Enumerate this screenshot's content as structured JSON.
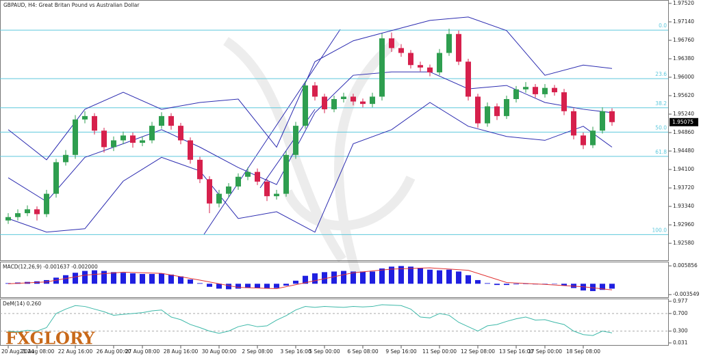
{
  "logo": "FXGLORY",
  "chart_data": [
    {
      "type": "candlestick",
      "title": "GBPAUD, H4:  Great Britan Pound vs Australian Dollar",
      "categories": [
        "20 Aug 2024",
        null,
        null,
        "21 Aug 08:00",
        null,
        null,
        null,
        "22 Aug 16:00",
        null,
        null,
        null,
        "26 Aug 00:00",
        null,
        null,
        "27 Aug 08:00",
        null,
        null,
        null,
        "28 Aug 16:00",
        null,
        null,
        null,
        "30 Aug 00:00",
        null,
        null,
        null,
        "2 Sep 08:00",
        null,
        null,
        null,
        "3 Sep 16:00",
        null,
        null,
        "5 Sep 00:00",
        null,
        null,
        null,
        "6 Sep 08:00",
        null,
        null,
        null,
        "9 Sep 16:00",
        null,
        null,
        null,
        "11 Sep 00:00",
        null,
        null,
        null,
        "12 Sep 08:00",
        null,
        null,
        null,
        "13 Sep 16:00",
        null,
        null,
        "17 Sep 00:00",
        null,
        null,
        null,
        "18 Sep 08:00",
        null,
        null,
        null
      ],
      "open": [
        1.9305,
        1.9312,
        1.932,
        1.9328,
        1.9318,
        1.936,
        1.9425,
        1.944,
        1.9513,
        1.952,
        1.949,
        1.9456,
        1.947,
        1.948,
        1.9465,
        1.947,
        1.95,
        1.952,
        1.95,
        1.947,
        1.943,
        1.939,
        1.934,
        1.936,
        1.9375,
        1.9395,
        1.9405,
        1.9385,
        1.9355,
        1.936,
        1.944,
        1.95,
        1.9583,
        1.956,
        1.9534,
        1.9555,
        1.956,
        1.955,
        1.9545,
        1.956,
        1.968,
        1.966,
        1.965,
        1.9625,
        1.962,
        1.961,
        1.965,
        1.9689,
        1.9632,
        1.956,
        1.9505,
        1.954,
        1.952,
        1.9555,
        1.9575,
        1.958,
        1.9565,
        1.9578,
        1.9569,
        1.953,
        1.948,
        1.946,
        1.949,
        1.953
      ],
      "high": [
        1.932,
        1.9328,
        1.9336,
        1.9334,
        1.9368,
        1.9432,
        1.945,
        1.9522,
        1.953,
        1.9526,
        1.9496,
        1.9478,
        1.9488,
        1.9486,
        1.9478,
        1.9508,
        1.9528,
        1.9526,
        1.9506,
        1.9476,
        1.9436,
        1.9396,
        1.9368,
        1.9382,
        1.9402,
        1.9414,
        1.9412,
        1.939,
        1.9368,
        1.9448,
        1.9508,
        1.9592,
        1.959,
        1.9566,
        1.9562,
        1.9568,
        1.9566,
        1.9556,
        1.9568,
        1.969,
        1.9692,
        1.9668,
        1.9656,
        1.9632,
        1.9626,
        1.9658,
        1.97,
        1.9696,
        1.9638,
        1.9566,
        1.9548,
        1.9546,
        1.9562,
        1.9582,
        1.959,
        1.9586,
        1.9586,
        1.9584,
        1.9576,
        1.9536,
        1.9486,
        1.9498,
        1.9538,
        1.9536
      ],
      "low": [
        1.9298,
        1.9305,
        1.9314,
        1.9305,
        1.9312,
        1.9352,
        1.9418,
        1.9432,
        1.9505,
        1.9482,
        1.9445,
        1.9448,
        1.9462,
        1.9455,
        1.9458,
        1.9464,
        1.9494,
        1.9492,
        1.9462,
        1.9422,
        1.9382,
        1.932,
        1.9332,
        1.9352,
        1.9368,
        1.9388,
        1.9378,
        1.9345,
        1.9348,
        1.9354,
        1.9432,
        1.9494,
        1.9552,
        1.9526,
        1.9528,
        1.9548,
        1.9542,
        1.9538,
        1.9538,
        1.9552,
        1.9652,
        1.9642,
        1.9618,
        1.9612,
        1.9602,
        1.9604,
        1.9644,
        1.9625,
        1.9552,
        1.9496,
        1.9498,
        1.9512,
        1.9514,
        1.9548,
        1.9568,
        1.9558,
        1.9558,
        1.9562,
        1.9522,
        1.9472,
        1.9452,
        1.9454,
        1.9484,
        1.95
      ],
      "close": [
        1.9312,
        1.932,
        1.9328,
        1.9318,
        1.936,
        1.9425,
        1.944,
        1.9513,
        1.952,
        1.949,
        1.9456,
        1.947,
        1.948,
        1.9465,
        1.947,
        1.95,
        1.952,
        1.95,
        1.947,
        1.943,
        1.939,
        1.934,
        1.936,
        1.9375,
        1.9395,
        1.9405,
        1.9385,
        1.9355,
        1.936,
        1.944,
        1.95,
        1.9583,
        1.956,
        1.9534,
        1.9555,
        1.956,
        1.955,
        1.9545,
        1.956,
        1.968,
        1.966,
        1.965,
        1.9625,
        1.962,
        1.961,
        1.965,
        1.9689,
        1.9632,
        1.956,
        1.9505,
        1.954,
        1.952,
        1.9555,
        1.9575,
        1.958,
        1.9565,
        1.9578,
        1.9569,
        1.953,
        1.948,
        1.946,
        1.949,
        1.953,
        1.95075
      ],
      "up_color": "#2e9e4f",
      "down_color": "#d6204c",
      "ylim": [
        1.9223,
        1.9759
      ],
      "yticks": [
        {
          "value": 1.9752,
          "label": "1.97520"
        },
        {
          "value": 1.9714,
          "label": "1.97140"
        },
        {
          "value": 1.9676,
          "label": "1.96760"
        },
        {
          "value": 1.9638,
          "label": "1.96380"
        },
        {
          "value": 1.96,
          "label": "1.96000"
        },
        {
          "value": 1.9562,
          "label": "1.95620"
        },
        {
          "value": 1.9524,
          "label": "1.95240"
        },
        {
          "value": 1.9486,
          "label": "1.94860"
        },
        {
          "value": 1.9448,
          "label": "1.94480"
        },
        {
          "value": 1.941,
          "label": "1.94100"
        },
        {
          "value": 1.9372,
          "label": "1.93720"
        },
        {
          "value": 1.9334,
          "label": "1.93340"
        },
        {
          "value": 1.9296,
          "label": "1.92960"
        },
        {
          "value": 1.9258,
          "label": "1.92580"
        }
      ],
      "bands": {
        "color": "#2b2bb0",
        "x": [
          0,
          4,
          8,
          12,
          16,
          20,
          24,
          28,
          32,
          36,
          40,
          44,
          48,
          52,
          56,
          60,
          63
        ],
        "upper": [
          1.9492,
          1.943,
          1.9534,
          1.9569,
          1.9534,
          1.9548,
          1.9555,
          1.9456,
          1.9632,
          1.9675,
          1.9696,
          1.9717,
          1.9724,
          1.9696,
          1.9604,
          1.9625,
          1.9618
        ],
        "middle": [
          1.9393,
          1.9344,
          1.9435,
          1.9463,
          1.9492,
          1.9456,
          1.9414,
          1.9379,
          1.9527,
          1.9604,
          1.9611,
          1.9611,
          1.9576,
          1.9583,
          1.9548,
          1.9534,
          1.9527
        ],
        "lower": [
          1.9309,
          1.9281,
          1.9288,
          1.9386,
          1.9435,
          1.9407,
          1.9309,
          1.9323,
          1.9281,
          1.9463,
          1.9492,
          1.9548,
          1.9499,
          1.9478,
          1.947,
          1.9499,
          1.9456
        ]
      },
      "fib": {
        "color": "#5cc8dc",
        "labels": [
          "0.0",
          "23.6",
          "38.2",
          "50.0",
          "61.8",
          "100.0"
        ],
        "values": [
          1.9697,
          1.9597,
          1.9537,
          1.9487,
          1.9437,
          1.9276
        ]
      }
    },
    {
      "type": "bar",
      "label": "MACD(12,26,9) -0.001637 -0.002000",
      "color": "#1f1fe0",
      "values": [
        0.0002,
        0.0004,
        0.0006,
        0.0008,
        0.0012,
        0.002,
        0.0028,
        0.0036,
        0.0042,
        0.0044,
        0.0042,
        0.0038,
        0.0036,
        0.0034,
        0.0032,
        0.0032,
        0.0034,
        0.003,
        0.0024,
        0.0014,
        0.0002,
        -0.001,
        -0.0016,
        -0.0018,
        -0.0016,
        -0.0014,
        -0.0014,
        -0.0016,
        -0.0014,
        -0.0006,
        0.001,
        0.0026,
        0.0034,
        0.0038,
        0.004,
        0.0042,
        0.004,
        0.004,
        0.004,
        0.005,
        0.0056,
        0.0058,
        0.0056,
        0.0052,
        0.0046,
        0.0044,
        0.0046,
        0.004,
        0.0028,
        0.0012,
        0.0002,
        -0.0004,
        -0.0004,
        -0.0002,
        0,
        -0.0002,
        0,
        0,
        -0.0006,
        -0.0014,
        -0.0022,
        -0.0024,
        -0.002,
        -0.0016
      ],
      "signal": {
        "color": "#e03030",
        "x": [
          0,
          4,
          8,
          12,
          16,
          20,
          24,
          28,
          32,
          36,
          40,
          44,
          48,
          52,
          56,
          60,
          63
        ],
        "values": [
          0,
          0.0006,
          0.0028,
          0.0038,
          0.0034,
          0.0012,
          -0.0012,
          -0.0016,
          0.001,
          0.0036,
          0.0048,
          0.0052,
          0.0044,
          0.0004,
          -0.0002,
          -0.001,
          -0.002
        ]
      },
      "ylim": [
        -0.0044,
        0.007
      ],
      "yticks": [
        0.005856,
        -0.003549
      ]
    },
    {
      "type": "line",
      "label": "DeM(14) 0.260",
      "color": "#3cb8a8",
      "values": [
        0.3,
        0.28,
        0.32,
        0.3,
        0.38,
        0.7,
        0.8,
        0.88,
        0.86,
        0.8,
        0.74,
        0.66,
        0.68,
        0.7,
        0.72,
        0.76,
        0.78,
        0.62,
        0.56,
        0.45,
        0.38,
        0.3,
        0.25,
        0.3,
        0.4,
        0.45,
        0.4,
        0.42,
        0.55,
        0.65,
        0.78,
        0.86,
        0.84,
        0.86,
        0.85,
        0.84,
        0.86,
        0.85,
        0.86,
        0.9,
        0.89,
        0.88,
        0.8,
        0.62,
        0.6,
        0.7,
        0.66,
        0.5,
        0.4,
        0.3,
        0.42,
        0.45,
        0.52,
        0.58,
        0.62,
        0.55,
        0.56,
        0.5,
        0.45,
        0.3,
        0.22,
        0.2,
        0.3,
        0.26
      ],
      "ylim": [
        -0.032,
        1.024
      ],
      "yticks": [
        0.977,
        {
          "value": 0.7,
          "label": "0.700"
        },
        {
          "value": 0.3,
          "label": "0.300"
        },
        0.031
      ]
    }
  ]
}
